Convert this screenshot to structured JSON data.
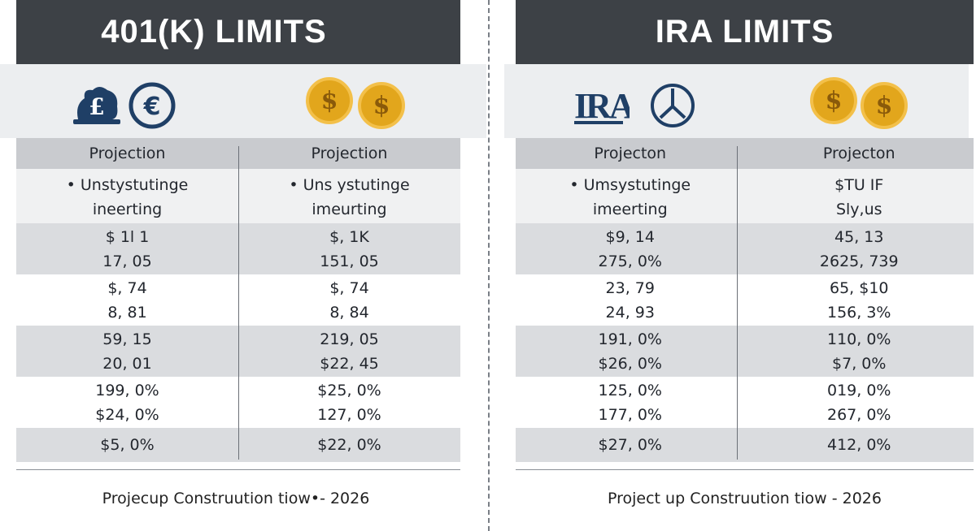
{
  "left": {
    "title": "401(K) LIMITS",
    "icons": [
      "piggy-bank-pound-icon",
      "euro-coin-icon",
      "dollar-coin-icon",
      "dollar-coin-icon"
    ],
    "coin_symbol": "$",
    "euro_symbol": "€",
    "pound_symbol": "£",
    "col1_header": "Projection",
    "col2_header": "Projection",
    "intro_col1": [
      "• Unstystutinge",
      "ineerting"
    ],
    "intro_col2": [
      "• Uns ystutinge",
      "imeurting"
    ],
    "rows": [
      [
        [
          "$ 1l 1",
          "17, 05"
        ],
        [
          "$, 1K",
          "151, 05"
        ]
      ],
      [
        [
          "$, 74",
          "8, 81"
        ],
        [
          "$, 74",
          "8, 84"
        ]
      ],
      [
        [
          "59, 15",
          "20, 01"
        ],
        [
          "219, 05",
          "$22, 45"
        ]
      ],
      [
        [
          "199, 0%",
          "$24, 0%"
        ],
        [
          "$25, 0%",
          "127, 0%"
        ]
      ],
      [
        [
          "$5, 0%"
        ],
        [
          "$22, 0%"
        ]
      ]
    ],
    "footer": "Projecup Construution tiow•- 2026"
  },
  "right": {
    "title": "IRA LIMITS",
    "icons": [
      "ira-logo-icon",
      "peace-clock-icon",
      "dollar-coin-icon",
      "dollar-coin-icon"
    ],
    "ira_text": "IRA",
    "coin_symbol": "$",
    "col1_header": "Projecton",
    "col2_header": "Projecton",
    "intro_col1": [
      "• Umsystutinge",
      "imeerting"
    ],
    "intro_col2": [
      "$TU IF",
      "Sly,us"
    ],
    "rows": [
      [
        [
          "$9, 14",
          "275, 0%"
        ],
        [
          "45, 13",
          "2625, 739"
        ]
      ],
      [
        [
          "23, 79",
          "24, 93"
        ],
        [
          "65, $10",
          "156, 3%"
        ]
      ],
      [
        [
          "191, 0%",
          "$26, 0%"
        ],
        [
          "110, 0%",
          "$7, 0%"
        ]
      ],
      [
        [
          "125, 0%",
          "177, 0%"
        ],
        [
          "019, 0%",
          "267, 0%"
        ]
      ],
      [
        [
          "$27, 0%"
        ],
        [
          "412, 0%"
        ]
      ]
    ],
    "footer": "Project up Construution tiow - 2026"
  },
  "colors": {
    "header_bg": "#3d4146",
    "icon_band_bg": "#eceef0",
    "table_head_bg": "#c9cbcf",
    "row_shade": "#dadcdf",
    "coin_gold": "#e2a61c",
    "icon_navy": "#1f3f66"
  }
}
